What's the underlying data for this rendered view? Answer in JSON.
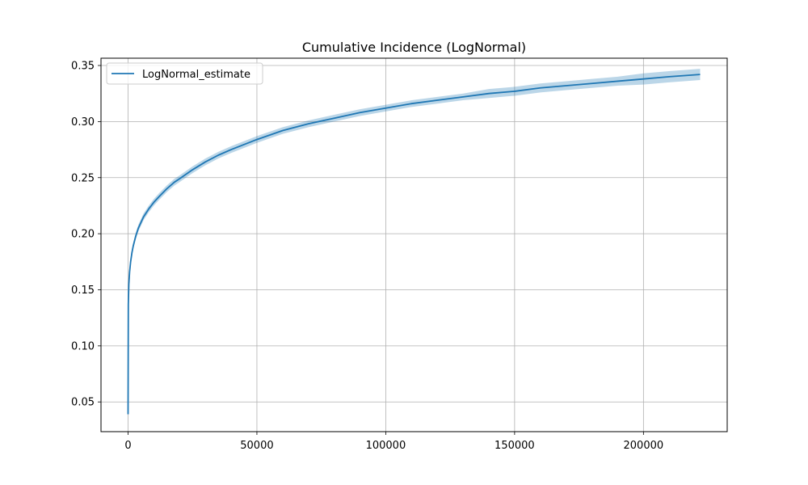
{
  "chart_data": {
    "type": "line",
    "title": "Cumulative Incidence (LogNormal)",
    "xlabel": "",
    "ylabel": "",
    "xlim": [
      -10500,
      232500
    ],
    "ylim": [
      0.0235,
      0.3565
    ],
    "xticks": [
      0,
      50000,
      100000,
      150000,
      200000
    ],
    "xtick_labels": [
      "0",
      "50000",
      "100000",
      "150000",
      "200000"
    ],
    "yticks": [
      0.05,
      0.1,
      0.15,
      0.2,
      0.25,
      0.3,
      0.35
    ],
    "ytick_labels": [
      "0.05",
      "0.10",
      "0.15",
      "0.20",
      "0.25",
      "0.30",
      "0.35"
    ],
    "grid": true,
    "legend": {
      "position": "top-left",
      "entries": [
        "LogNormal_estimate"
      ]
    },
    "colors": {
      "line": "#1f77b4",
      "band": "#1f77b4",
      "grid": "#b0b0b0"
    },
    "series": [
      {
        "name": "LogNormal_estimate",
        "x": [
          0,
          100,
          300,
          600,
          1000,
          1500,
          2000,
          3000,
          4000,
          5000,
          6000,
          8000,
          10000,
          12000,
          15000,
          18000,
          20000,
          25000,
          30000,
          35000,
          40000,
          50000,
          60000,
          70000,
          80000,
          90000,
          100000,
          110000,
          120000,
          130000,
          140000,
          150000,
          160000,
          170000,
          180000,
          190000,
          200000,
          210000,
          222000
        ],
        "y": [
          0.039,
          0.137,
          0.155,
          0.166,
          0.175,
          0.183,
          0.189,
          0.198,
          0.205,
          0.21,
          0.215,
          0.222,
          0.228,
          0.233,
          0.24,
          0.246,
          0.249,
          0.257,
          0.264,
          0.27,
          0.275,
          0.284,
          0.292,
          0.298,
          0.303,
          0.308,
          0.312,
          0.316,
          0.319,
          0.322,
          0.325,
          0.327,
          0.33,
          0.332,
          0.334,
          0.336,
          0.338,
          0.34,
          0.342
        ],
        "lower": [
          0.038,
          0.134,
          0.152,
          0.163,
          0.172,
          0.18,
          0.186,
          0.195,
          0.202,
          0.207,
          0.212,
          0.219,
          0.225,
          0.23,
          0.237,
          0.243,
          0.246,
          0.254,
          0.261,
          0.267,
          0.272,
          0.281,
          0.289,
          0.295,
          0.3,
          0.305,
          0.309,
          0.313,
          0.316,
          0.319,
          0.321,
          0.323,
          0.326,
          0.328,
          0.33,
          0.332,
          0.333,
          0.335,
          0.337
        ],
        "upper": [
          0.04,
          0.14,
          0.158,
          0.169,
          0.178,
          0.186,
          0.192,
          0.201,
          0.208,
          0.213,
          0.218,
          0.225,
          0.231,
          0.236,
          0.243,
          0.249,
          0.252,
          0.26,
          0.267,
          0.273,
          0.278,
          0.287,
          0.295,
          0.301,
          0.306,
          0.311,
          0.315,
          0.319,
          0.322,
          0.325,
          0.329,
          0.331,
          0.334,
          0.336,
          0.338,
          0.34,
          0.343,
          0.345,
          0.347
        ]
      }
    ]
  }
}
